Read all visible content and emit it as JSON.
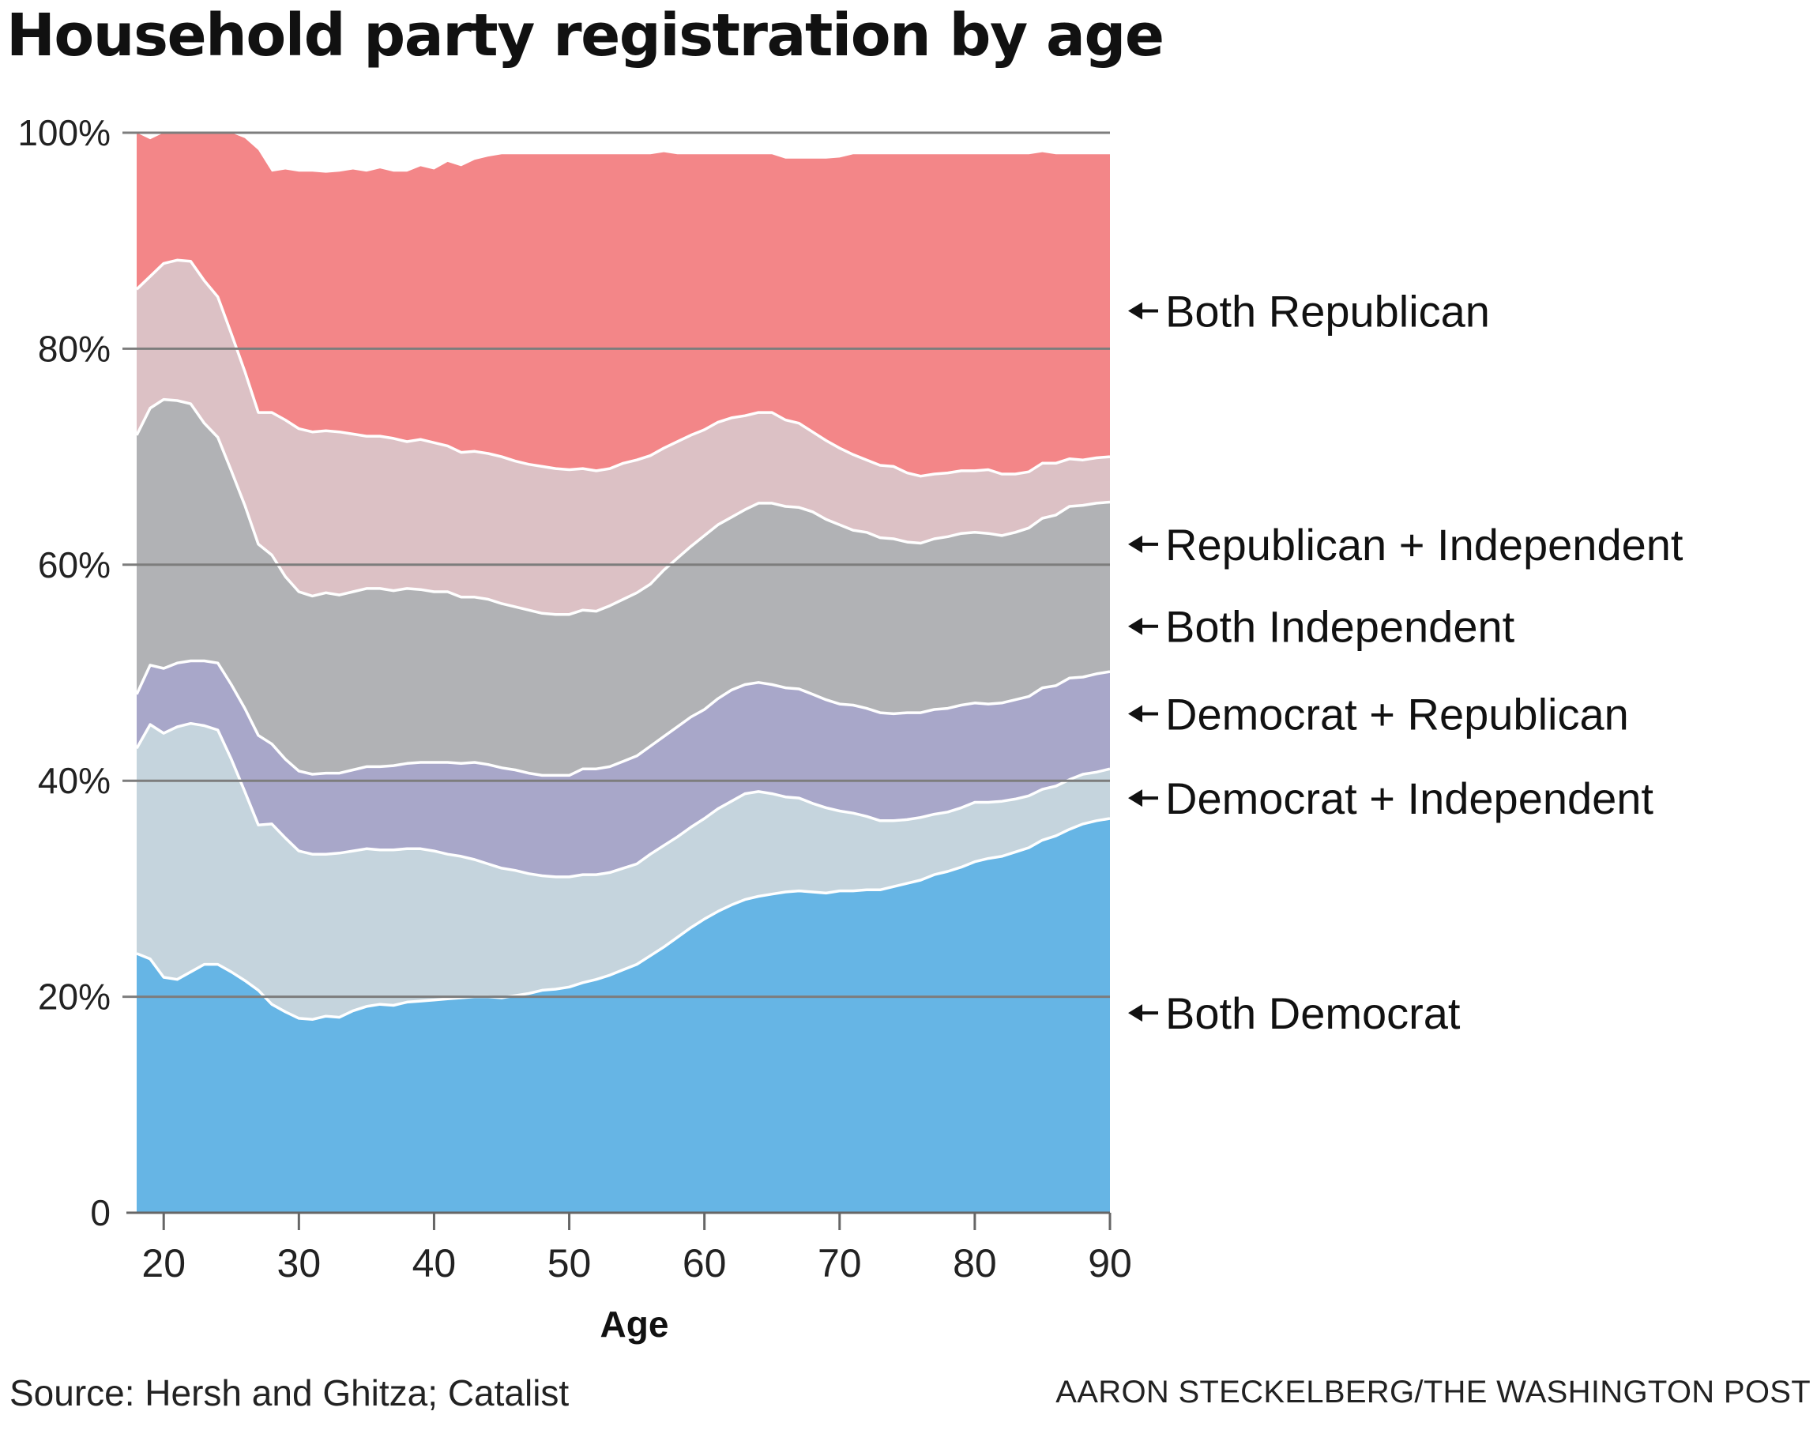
{
  "title": "Household party registration by age",
  "source": "Source: Hersh and Ghitza; Catalist",
  "credit": "AARON STECKELBERG/THE WASHINGTON POST",
  "chart_data": {
    "type": "area",
    "stacked": true,
    "title": "Household party registration by age",
    "xlabel": "Age",
    "ylabel": "",
    "xlim": [
      18,
      90
    ],
    "ylim": [
      0,
      100
    ],
    "x_ticks": [
      20,
      30,
      40,
      50,
      60,
      70,
      80,
      90
    ],
    "y_ticks": [
      {
        "value": 0,
        "label": "0"
      },
      {
        "value": 20,
        "label": "20%"
      },
      {
        "value": 40,
        "label": "40%"
      },
      {
        "value": 60,
        "label": "60%"
      },
      {
        "value": 80,
        "label": "80%"
      },
      {
        "value": 100,
        "label": "100%"
      }
    ],
    "grid": true,
    "legend": "direct labels, right",
    "x": [
      18,
      19,
      20,
      21,
      22,
      23,
      24,
      25,
      26,
      27,
      28,
      29,
      30,
      31,
      32,
      33,
      34,
      35,
      36,
      37,
      38,
      39,
      40,
      41,
      42,
      43,
      44,
      45,
      46,
      47,
      48,
      49,
      50,
      51,
      52,
      53,
      54,
      55,
      56,
      57,
      58,
      59,
      60,
      61,
      62,
      63,
      64,
      65,
      66,
      67,
      68,
      69,
      70,
      71,
      72,
      73,
      74,
      75,
      76,
      77,
      78,
      79,
      80,
      81,
      82,
      83,
      84,
      85,
      86,
      87,
      88,
      89,
      90
    ],
    "series": [
      {
        "name": "Both Democrat",
        "color": "#66b5e5",
        "label_value": 18.5,
        "values": [
          24,
          23.5,
          21.8,
          21.6,
          22.3,
          23,
          23,
          22.3,
          21.5,
          20.6,
          19.3,
          18.6,
          18,
          17.9,
          18.2,
          18.1,
          18.7,
          19.1,
          19.3,
          19.2,
          19.5,
          19.6,
          19.7,
          19.8,
          19.9,
          20,
          20,
          19.9,
          20.1,
          20.3,
          20.6,
          20.7,
          20.9,
          21.3,
          21.6,
          22,
          22.5,
          23,
          23.8,
          24.6,
          25.5,
          26.4,
          27.2,
          27.9,
          28.5,
          29,
          29.3,
          29.5,
          29.7,
          29.8,
          29.7,
          29.6,
          29.8,
          29.8,
          29.9,
          29.9,
          30.2,
          30.5,
          30.8,
          31.3,
          31.6,
          32,
          32.5,
          32.8,
          33,
          33.4,
          33.8,
          34.5,
          34.9,
          35.5,
          36,
          36.3,
          36.5
        ]
      },
      {
        "name": "Democrat + Independent",
        "color": "#c5d4dd",
        "label_value": 38.4,
        "values": [
          19,
          21.7,
          22.6,
          23.4,
          23,
          22.1,
          21.7,
          19.7,
          17.5,
          15.3,
          16.7,
          16.1,
          15.5,
          15.3,
          15,
          15.2,
          14.8,
          14.6,
          14.3,
          14.4,
          14.2,
          14.1,
          13.8,
          13.4,
          13.1,
          12.7,
          12.3,
          12,
          11.6,
          11.1,
          10.6,
          10.4,
          10.2,
          10,
          9.7,
          9.5,
          9.4,
          9.3,
          9.4,
          9.4,
          9.3,
          9.3,
          9.3,
          9.5,
          9.6,
          9.8,
          9.7,
          9.3,
          8.8,
          8.6,
          8.2,
          7.9,
          7.4,
          7.2,
          6.8,
          6.4,
          6.1,
          5.9,
          5.8,
          5.6,
          5.5,
          5.5,
          5.5,
          5.2,
          5.1,
          4.9,
          4.8,
          4.7,
          4.6,
          4.6,
          4.6,
          4.5,
          4.6
        ]
      },
      {
        "name": "Democrat + Republican",
        "color": "#a8a7c9",
        "label_value": 46.2,
        "values": [
          5,
          5.5,
          6,
          5.9,
          5.8,
          6,
          6.2,
          6.9,
          7.7,
          8.3,
          7.4,
          7.3,
          7.4,
          7.4,
          7.5,
          7.4,
          7.5,
          7.6,
          7.7,
          7.8,
          7.9,
          8,
          8.2,
          8.5,
          8.6,
          9,
          9.2,
          9.3,
          9.3,
          9.3,
          9.3,
          9.4,
          9.4,
          9.8,
          9.8,
          9.8,
          9.9,
          10,
          10,
          10.1,
          10.2,
          10.2,
          10.1,
          10.2,
          10.3,
          10.1,
          10.1,
          10.1,
          10.1,
          10.1,
          10.1,
          10,
          9.9,
          10,
          10,
          10,
          9.9,
          9.9,
          9.7,
          9.7,
          9.6,
          9.5,
          9.2,
          9.1,
          9.1,
          9.2,
          9.2,
          9.4,
          9.3,
          9.4,
          9,
          9.1,
          9
        ]
      },
      {
        "name": "Both Independent",
        "color": "#b1b2b5",
        "label_value": 54.3,
        "values": [
          24,
          23.8,
          24.9,
          24.3,
          23.8,
          22,
          20.9,
          19.8,
          18.8,
          17.7,
          17.5,
          16.9,
          16.6,
          16.5,
          16.7,
          16.5,
          16.5,
          16.5,
          16.5,
          16.2,
          16.2,
          16,
          15.8,
          15.8,
          15.4,
          15.3,
          15.3,
          15.2,
          15.1,
          15.1,
          15,
          14.9,
          14.9,
          14.7,
          14.6,
          14.9,
          15,
          15.1,
          15,
          15.4,
          15.6,
          15.8,
          16.1,
          16.1,
          16,
          16.2,
          16.6,
          16.8,
          16.8,
          16.8,
          16.9,
          16.7,
          16.6,
          16.2,
          16.3,
          16.2,
          16.2,
          15.8,
          15.7,
          15.8,
          15.9,
          15.9,
          15.8,
          15.8,
          15.5,
          15.5,
          15.6,
          15.7,
          15.8,
          15.9,
          15.9,
          15.8,
          15.7
        ]
      },
      {
        "name": "Republican + Independent",
        "color": "#dcc1c5",
        "label_value": 61.9,
        "values": [
          13.5,
          12.2,
          12.6,
          13,
          13.2,
          13.2,
          13,
          12.7,
          12.4,
          12.2,
          13.2,
          14.5,
          15.1,
          15.2,
          15,
          15.1,
          14.6,
          14.1,
          14.1,
          14.1,
          13.6,
          13.9,
          13.8,
          13.5,
          13.4,
          13.5,
          13.5,
          13.6,
          13.5,
          13.5,
          13.6,
          13.5,
          13.4,
          13.1,
          13,
          12.7,
          12.6,
          12.3,
          11.9,
          11.3,
          10.8,
          10.3,
          9.8,
          9.5,
          9.2,
          8.7,
          8.4,
          8.4,
          8,
          7.8,
          7.4,
          7.3,
          7.1,
          7,
          6.7,
          6.7,
          6.7,
          6.4,
          6.2,
          6,
          5.9,
          5.8,
          5.7,
          5.9,
          5.7,
          5.4,
          5.2,
          5.1,
          4.8,
          4.4,
          4.2,
          4.2,
          4.2
        ]
      },
      {
        "name": "Both Republican",
        "color": "#f38688",
        "label_value": 83.5,
        "values": [
          14.5,
          12.7,
          12.1,
          11.8,
          11.9,
          13.7,
          15.2,
          18.6,
          21.6,
          24.3,
          22.3,
          23.2,
          23.8,
          24.1,
          23.9,
          24.1,
          24.5,
          24.5,
          24.8,
          24.7,
          25,
          25.3,
          25.3,
          26.3,
          26.5,
          27,
          27.5,
          28,
          28.4,
          28.7,
          28.9,
          29.1,
          29.2,
          29.1,
          29.3,
          29.1,
          28.6,
          28.3,
          27.9,
          27.4,
          26.6,
          26,
          25.5,
          24.8,
          24.4,
          24.2,
          23.9,
          23.9,
          24.2,
          24.5,
          25.3,
          26.1,
          26.9,
          27.8,
          28.3,
          28.8,
          28.9,
          29.5,
          29.8,
          29.6,
          29.5,
          29.3,
          29.3,
          29.2,
          29.6,
          29.6,
          29.4,
          28.8,
          28.6,
          28.2,
          28.3,
          28.1,
          28
        ]
      }
    ]
  }
}
